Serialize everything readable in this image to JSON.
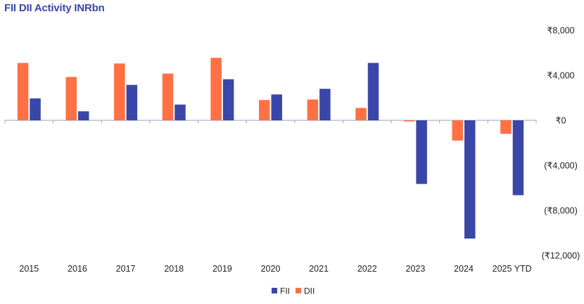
{
  "chart_data": {
    "type": "bar",
    "title": "FII DII Activity INRbn",
    "xlabel": "",
    "ylabel": "",
    "categories": [
      "2015",
      "2016",
      "2017",
      "2018",
      "2019",
      "2020",
      "2021",
      "2022",
      "2023",
      "2024",
      "2025 YTD"
    ],
    "series": [
      {
        "name": "FII",
        "color": "#3a47a8",
        "values": [
          1950,
          800,
          3150,
          1400,
          3650,
          2300,
          2800,
          5100,
          -5650,
          -10500,
          -6650
        ]
      },
      {
        "name": "DII",
        "color": "#ff7043",
        "values": [
          5100,
          3850,
          5050,
          4150,
          5550,
          1800,
          1850,
          1100,
          -100,
          -1800,
          -1200
        ]
      }
    ],
    "ylim": [
      -12000,
      8000
    ],
    "yticks": [
      8000,
      4000,
      0,
      -4000,
      -8000,
      -12000
    ],
    "ytick_labels": [
      "₹8,000",
      "₹4,000",
      "₹0",
      "(₹4,000)",
      "(₹8,000)",
      "(₹12,000)"
    ],
    "y_axis_position": "right",
    "grid": false,
    "legend_position": "bottom-center",
    "title_color": "#3a47a8"
  }
}
